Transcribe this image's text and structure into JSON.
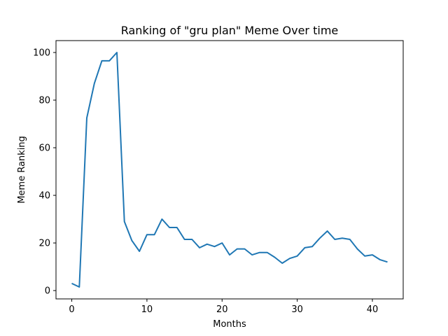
{
  "chart_data": {
    "type": "line",
    "title": "Ranking of \"gru plan\" Meme Over time",
    "xlabel": "Months",
    "ylabel": "Meme Ranking",
    "xlim": [
      -2.1,
      44.1
    ],
    "ylim": [
      -3.5,
      105
    ],
    "xticks": [
      0,
      10,
      20,
      30,
      40
    ],
    "yticks": [
      0,
      20,
      40,
      60,
      80,
      100
    ],
    "grid": false,
    "line_color": "#1f77b4",
    "series": [
      {
        "x": [
          0,
          1,
          2,
          3,
          4,
          5,
          6,
          7,
          8,
          9,
          10,
          11,
          12,
          13,
          14,
          15,
          16,
          17,
          18,
          19,
          20,
          21,
          22,
          23,
          24,
          25,
          26,
          27,
          28,
          29,
          30,
          31,
          32,
          33,
          34,
          35,
          36,
          37,
          38,
          39,
          40,
          41,
          42
        ],
        "values": [
          3,
          1.5,
          72.5,
          87,
          96.5,
          96.5,
          100,
          29,
          21,
          16.5,
          23.5,
          23.5,
          30,
          26.5,
          26.5,
          21.5,
          21.5,
          18,
          19.5,
          18.5,
          20,
          15,
          17.5,
          17.5,
          15,
          16,
          16,
          14,
          11.5,
          13.5,
          14.5,
          18,
          18.5,
          22,
          25,
          21.5,
          22,
          21.5,
          17.5,
          14.5,
          15,
          13,
          12
        ]
      }
    ]
  }
}
